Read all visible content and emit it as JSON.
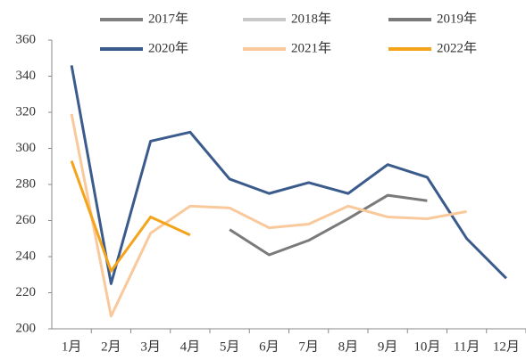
{
  "chart_data": {
    "type": "line",
    "categories": [
      "1月",
      "2月",
      "3月",
      "4月",
      "5月",
      "6月",
      "7月",
      "8月",
      "9月",
      "10月",
      "11月",
      "12月"
    ],
    "series": [
      {
        "name": "2017年",
        "color": "#808080",
        "values": [
          null,
          null,
          null,
          null,
          null,
          null,
          null,
          null,
          null,
          null,
          null,
          null
        ]
      },
      {
        "name": "2018年",
        "color": "#c8c8c8",
        "values": [
          null,
          null,
          null,
          null,
          null,
          null,
          null,
          null,
          null,
          null,
          null,
          null
        ]
      },
      {
        "name": "2019年",
        "color": "#7a7a7a",
        "values": [
          null,
          null,
          null,
          null,
          255,
          241,
          249,
          261,
          274,
          271,
          null,
          null
        ]
      },
      {
        "name": "2020年",
        "color": "#3b5b8c",
        "values": [
          346,
          225,
          304,
          309,
          283,
          275,
          281,
          275,
          291,
          284,
          250,
          228
        ]
      },
      {
        "name": "2021年",
        "color": "#f9c99c",
        "values": [
          319,
          207,
          253,
          268,
          267,
          256,
          258,
          268,
          262,
          261,
          265,
          null
        ]
      },
      {
        "name": "2022年",
        "color": "#f5a31a",
        "values": [
          293,
          232,
          262,
          252,
          null,
          null,
          null,
          null,
          null,
          null,
          null,
          null
        ]
      }
    ],
    "ylim": [
      200,
      360
    ],
    "yticks": [
      200,
      220,
      240,
      260,
      280,
      300,
      320,
      340,
      360
    ]
  }
}
